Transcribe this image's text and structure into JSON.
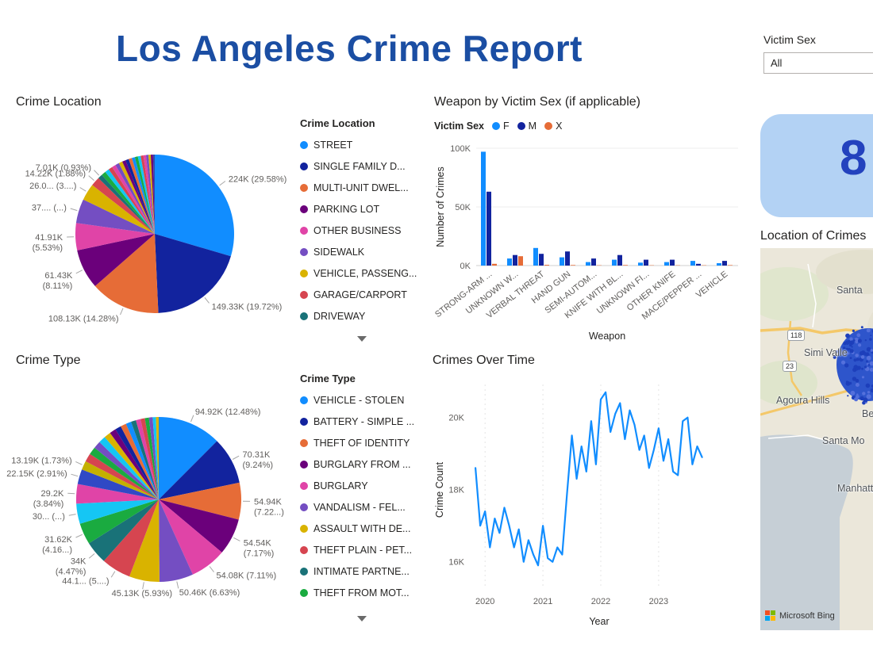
{
  "colors": {
    "title": "#1B4EA3",
    "card_bg": "#B3D2F4",
    "card_value": "#2342BE",
    "line": "#118DFF"
  },
  "title": "Los Angeles Crime Report",
  "slicer": {
    "label": "Victim Sex",
    "value": "All"
  },
  "card": {
    "value": "8"
  },
  "map": {
    "title": "Location of Crimes",
    "attribution": "Microsoft Bing",
    "labels": [
      {
        "text": "Santa"
      },
      {
        "text": "Simi Valle"
      },
      {
        "text": "Agoura Hills"
      },
      {
        "text": "Be"
      },
      {
        "text": "Santa Mo"
      },
      {
        "text": "Manhatt"
      }
    ],
    "shields": [
      "118",
      "23"
    ]
  },
  "chart_data": [
    {
      "type": "pie",
      "title": "Crime Location",
      "legend_title": "Crime Location",
      "legend_position": "right",
      "units": "K crimes",
      "slices": [
        {
          "name": "STREET",
          "value": 224,
          "label": "224K (29.58%)",
          "color": "#118DFF"
        },
        {
          "name": "SINGLE FAMILY D...",
          "value": 149.33,
          "label": "149.33K (19.72%)",
          "color": "#12239E"
        },
        {
          "name": "MULTI-UNIT DWEL...",
          "value": 108.13,
          "label": "108.13K (14.28%)",
          "color": "#E66C37"
        },
        {
          "name": "PARKING LOT",
          "value": 61.43,
          "label": "61.43K\n(8.11%)",
          "color": "#6B007B"
        },
        {
          "name": "OTHER BUSINESS",
          "value": 41.91,
          "label": "41.91K\n(5.53%)",
          "color": "#E044A7"
        },
        {
          "name": "SIDEWALK",
          "value": 37.4,
          "label": "37.... (...)",
          "color": "#744EC2"
        },
        {
          "name": "VEHICLE, PASSENG...",
          "value": 26.0,
          "label": "26.0... (3....)",
          "color": "#D9B300"
        },
        {
          "name": "GARAGE/CARPORT",
          "value": 14.22,
          "label": "14.22K (1.88%)",
          "color": "#D64550"
        },
        {
          "name": "DRIVEWAY",
          "value": 7.01,
          "label": "7.01K (0.93%)",
          "color": "#197278"
        },
        {
          "value": 6.9,
          "color": "#1AAB40"
        },
        {
          "value": 6.6,
          "color": "#15C6F4"
        },
        {
          "value": 6.3,
          "color": "#D64550"
        },
        {
          "value": 6.0,
          "color": "#E044A7"
        },
        {
          "value": 5.8,
          "color": "#744EC2"
        },
        {
          "value": 5.6,
          "color": "#D9B300"
        },
        {
          "value": 5.4,
          "color": "#6B007B"
        },
        {
          "value": 5.2,
          "color": "#12239E"
        },
        {
          "value": 5.0,
          "color": "#E66C37"
        },
        {
          "value": 4.8,
          "color": "#118DFF"
        },
        {
          "value": 4.6,
          "color": "#1AAB40"
        },
        {
          "value": 4.4,
          "color": "#15C6F4"
        },
        {
          "value": 4.2,
          "color": "#D64550"
        },
        {
          "value": 4.0,
          "color": "#E044A7"
        },
        {
          "value": 3.8,
          "color": "#744EC2"
        },
        {
          "value": 3.6,
          "color": "#D9B300"
        },
        {
          "value": 3.3,
          "color": "#6B007B"
        },
        {
          "value": 2.7,
          "color": "#3049AD"
        }
      ]
    },
    {
      "type": "pie",
      "title": "Crime Type",
      "legend_title": "Crime Type",
      "legend_position": "right",
      "units": "K crimes",
      "slices": [
        {
          "name": "VEHICLE - STOLEN",
          "value": 94.92,
          "label": "94.92K (12.48%)",
          "color": "#118DFF"
        },
        {
          "name": "BATTERY - SIMPLE ...",
          "value": 70.31,
          "label": "70.31K\n(9.24%)",
          "color": "#12239E"
        },
        {
          "name": "THEFT OF IDENTITY",
          "value": 54.94,
          "label": "54.94K\n(7.22...)",
          "color": "#E66C37"
        },
        {
          "name": "BURGLARY FROM ...",
          "value": 54.54,
          "label": "54.54K\n(7.17%)",
          "color": "#6B007B"
        },
        {
          "name": "BURGLARY",
          "value": 54.08,
          "label": "54.08K (7.11%)",
          "color": "#E044A7"
        },
        {
          "name": "VANDALISM - FEL...",
          "value": 50.46,
          "label": "50.46K (6.63%)",
          "color": "#744EC2"
        },
        {
          "name": "ASSAULT WITH DE...",
          "value": 45.13,
          "label": "45.13K (5.93%)",
          "color": "#D9B300"
        },
        {
          "name": "THEFT PLAIN - PET...",
          "value": 44.1,
          "label": "44.1... (5....)",
          "color": "#D64550"
        },
        {
          "name": "INTIMATE PARTNE...",
          "value": 34,
          "label": "34K\n(4.47%)",
          "color": "#197278"
        },
        {
          "name": "THEFT FROM MOT...",
          "value": 31.62,
          "label": "31.62K\n(4.16...)",
          "color": "#1AAB40"
        },
        {
          "value": 30,
          "label": "30... (...)",
          "color": "#15C6F4"
        },
        {
          "value": 29.2,
          "label": "29.2K\n(3.84%)",
          "color": "#E044A7"
        },
        {
          "value": 22.15,
          "label": "22.15K (2.91%)",
          "color": "#3049C5"
        },
        {
          "value": 13.19,
          "label": "13.19K (1.73%)",
          "color": "#C4B000"
        },
        {
          "value": 12.5,
          "color": "#D64550"
        },
        {
          "value": 11.5,
          "color": "#1AAB40"
        },
        {
          "value": 11,
          "color": "#744EC2"
        },
        {
          "value": 10.5,
          "color": "#15C6F4"
        },
        {
          "value": 10,
          "color": "#D9B300"
        },
        {
          "value": 9.5,
          "color": "#6B007B"
        },
        {
          "value": 9,
          "color": "#12239E"
        },
        {
          "value": 8.5,
          "color": "#E66C37"
        },
        {
          "value": 8,
          "color": "#118DFF"
        },
        {
          "value": 7.5,
          "color": "#197278"
        },
        {
          "value": 7,
          "color": "#E044A7"
        },
        {
          "value": 6.5,
          "color": "#D64550"
        },
        {
          "value": 6,
          "color": "#1AAB40"
        },
        {
          "value": 5.5,
          "color": "#744EC2"
        },
        {
          "value": 4.9,
          "color": "#15C6F4"
        },
        {
          "value": 4.04,
          "color": "#D9B300"
        }
      ]
    },
    {
      "type": "bar",
      "title": "Weapon by Victim Sex (if applicable)",
      "legend_title": "Victim Sex",
      "xlabel": "Weapon",
      "ylabel": "Number of Crimes",
      "ylim": [
        0,
        100
      ],
      "yticks": [
        "0K",
        "50K",
        "100K"
      ],
      "ytick_values": [
        0,
        50,
        100
      ],
      "categories": [
        "STRONG-ARM ...",
        "UNKNOWN W...",
        "VERBAL THREAT",
        "HAND GUN",
        "SEMI-AUTOM...",
        "KNIFE WITH BL...",
        "UNKNOWN FI...",
        "OTHER KNIFE",
        "MACE/PEPPER ...",
        "VEHICLE"
      ],
      "series": [
        {
          "name": "F",
          "color": "#118DFF",
          "values": [
            97,
            6,
            15,
            7,
            3,
            5,
            2.5,
            3,
            4,
            2
          ]
        },
        {
          "name": "M",
          "color": "#12239E",
          "values": [
            63,
            9,
            10,
            12,
            6,
            9,
            5,
            5,
            1.5,
            4
          ]
        },
        {
          "name": "X",
          "color": "#E66C37",
          "values": [
            1.5,
            8,
            0.6,
            0.5,
            0.3,
            0.5,
            0.3,
            0.3,
            0.3,
            0.4
          ]
        }
      ]
    },
    {
      "type": "line",
      "title": "Crimes Over Time",
      "xlabel": "Year",
      "ylabel": "Crime Count",
      "color": "#118DFF",
      "xticks": [
        2020,
        2021,
        2022,
        2023
      ],
      "yticks": [
        "16K",
        "18K",
        "20K"
      ],
      "ytick_values": [
        16,
        18,
        20
      ],
      "ylim": [
        15.55,
        20.85
      ],
      "x_start": 2019.8333,
      "x_step": 0.08333,
      "values": [
        18.6,
        17.0,
        17.4,
        16.4,
        17.2,
        16.8,
        17.5,
        17.0,
        16.4,
        16.9,
        16.0,
        16.6,
        16.2,
        15.9,
        17.0,
        16.1,
        16.0,
        16.4,
        16.2,
        17.9,
        19.5,
        18.3,
        19.2,
        18.5,
        19.9,
        18.7,
        20.5,
        20.7,
        19.6,
        20.1,
        20.4,
        19.4,
        20.2,
        19.8,
        19.1,
        19.5,
        18.6,
        19.1,
        19.7,
        18.8,
        19.4,
        18.5,
        18.4,
        19.9,
        20.0,
        18.7,
        19.2,
        18.9
      ]
    }
  ]
}
